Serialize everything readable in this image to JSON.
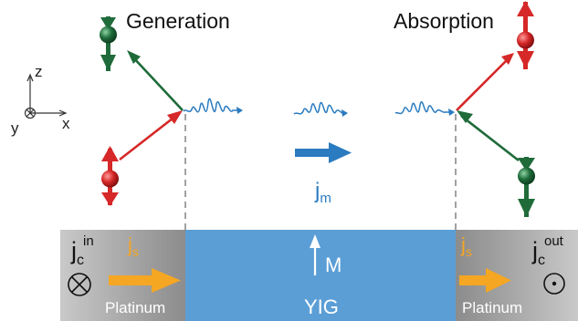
{
  "labels": {
    "generation": "Generation",
    "absorption": "Absorption",
    "current_jm_main": "j",
    "current_jm_sub": "m",
    "left_jc_main": "j",
    "left_jc_sub": "c",
    "left_jc_sup": "in",
    "right_jc_main": "j",
    "right_jc_sub": "c",
    "right_jc_sup": "out",
    "left_js_main": "j",
    "left_js_sub": "s",
    "right_js_main": "j",
    "right_js_sub": "s",
    "magnetization": "M",
    "yig": "YIG",
    "left_material": "Platinum",
    "right_material": "Platinum",
    "axis_x": "x",
    "axis_y": "y",
    "axis_z": "z"
  },
  "colors": {
    "spin_up_red": "#d62828",
    "spin_down_green": "#1f6b3a",
    "wave_blue": "#2a7bc0",
    "yig_blue": "#5b9ed6",
    "platinum_gray": "#9a9a9a",
    "spin_current_orange": "#f5a623"
  },
  "icons": {
    "in_plane_symbol": "circled-cross-icon",
    "out_of_plane_symbol": "circled-dot-icon"
  }
}
